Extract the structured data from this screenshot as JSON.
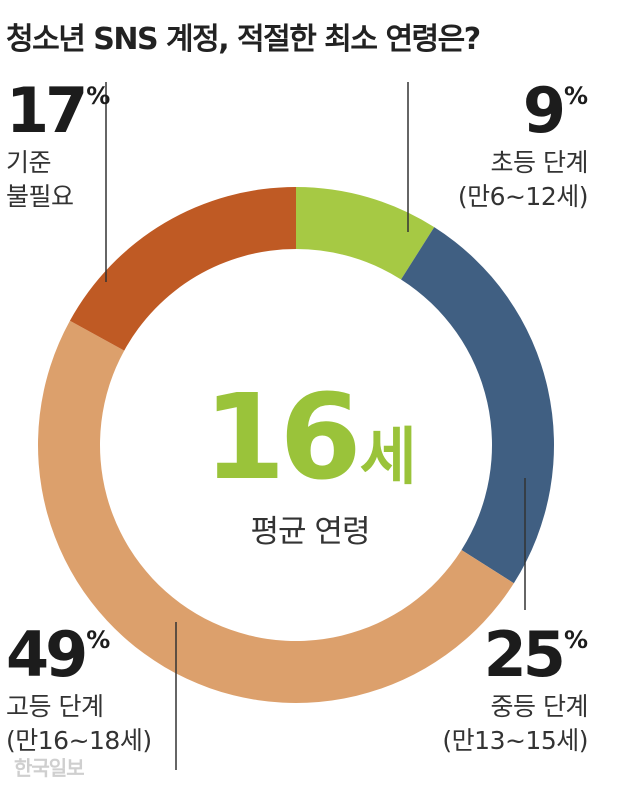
{
  "header": {
    "title": "청소년 SNS 계정, 적절한 최소 연령은?"
  },
  "center": {
    "value": "16",
    "unit": "세",
    "label": "평균 연령"
  },
  "labels": {
    "elementary": {
      "pct": "9",
      "line1": "초등 단계",
      "line2": "(만6~12세)"
    },
    "middle": {
      "pct": "25",
      "line1": "중등 단계",
      "line2": "(만13~15세)"
    },
    "high": {
      "pct": "49",
      "line1": "고등 단계",
      "line2": "(만16~18세)"
    },
    "none": {
      "pct": "17",
      "line1": "기준",
      "line2": "불필요"
    }
  },
  "percent_sign": "%",
  "watermark": "한국일보",
  "chart_data": {
    "type": "pie",
    "donut": true,
    "title": "청소년 SNS 계정, 적절한 최소 연령은?",
    "categories": [
      "초등 단계 (만6~12세)",
      "중등 단계 (만13~15세)",
      "고등 단계 (만16~18세)",
      "기준 불필요"
    ],
    "values": [
      9,
      25,
      49,
      17
    ],
    "unit": "%",
    "colors": [
      "#a6c944",
      "#405f82",
      "#dca06c",
      "#bf5a24"
    ],
    "center_text": "16세 평균 연령"
  }
}
